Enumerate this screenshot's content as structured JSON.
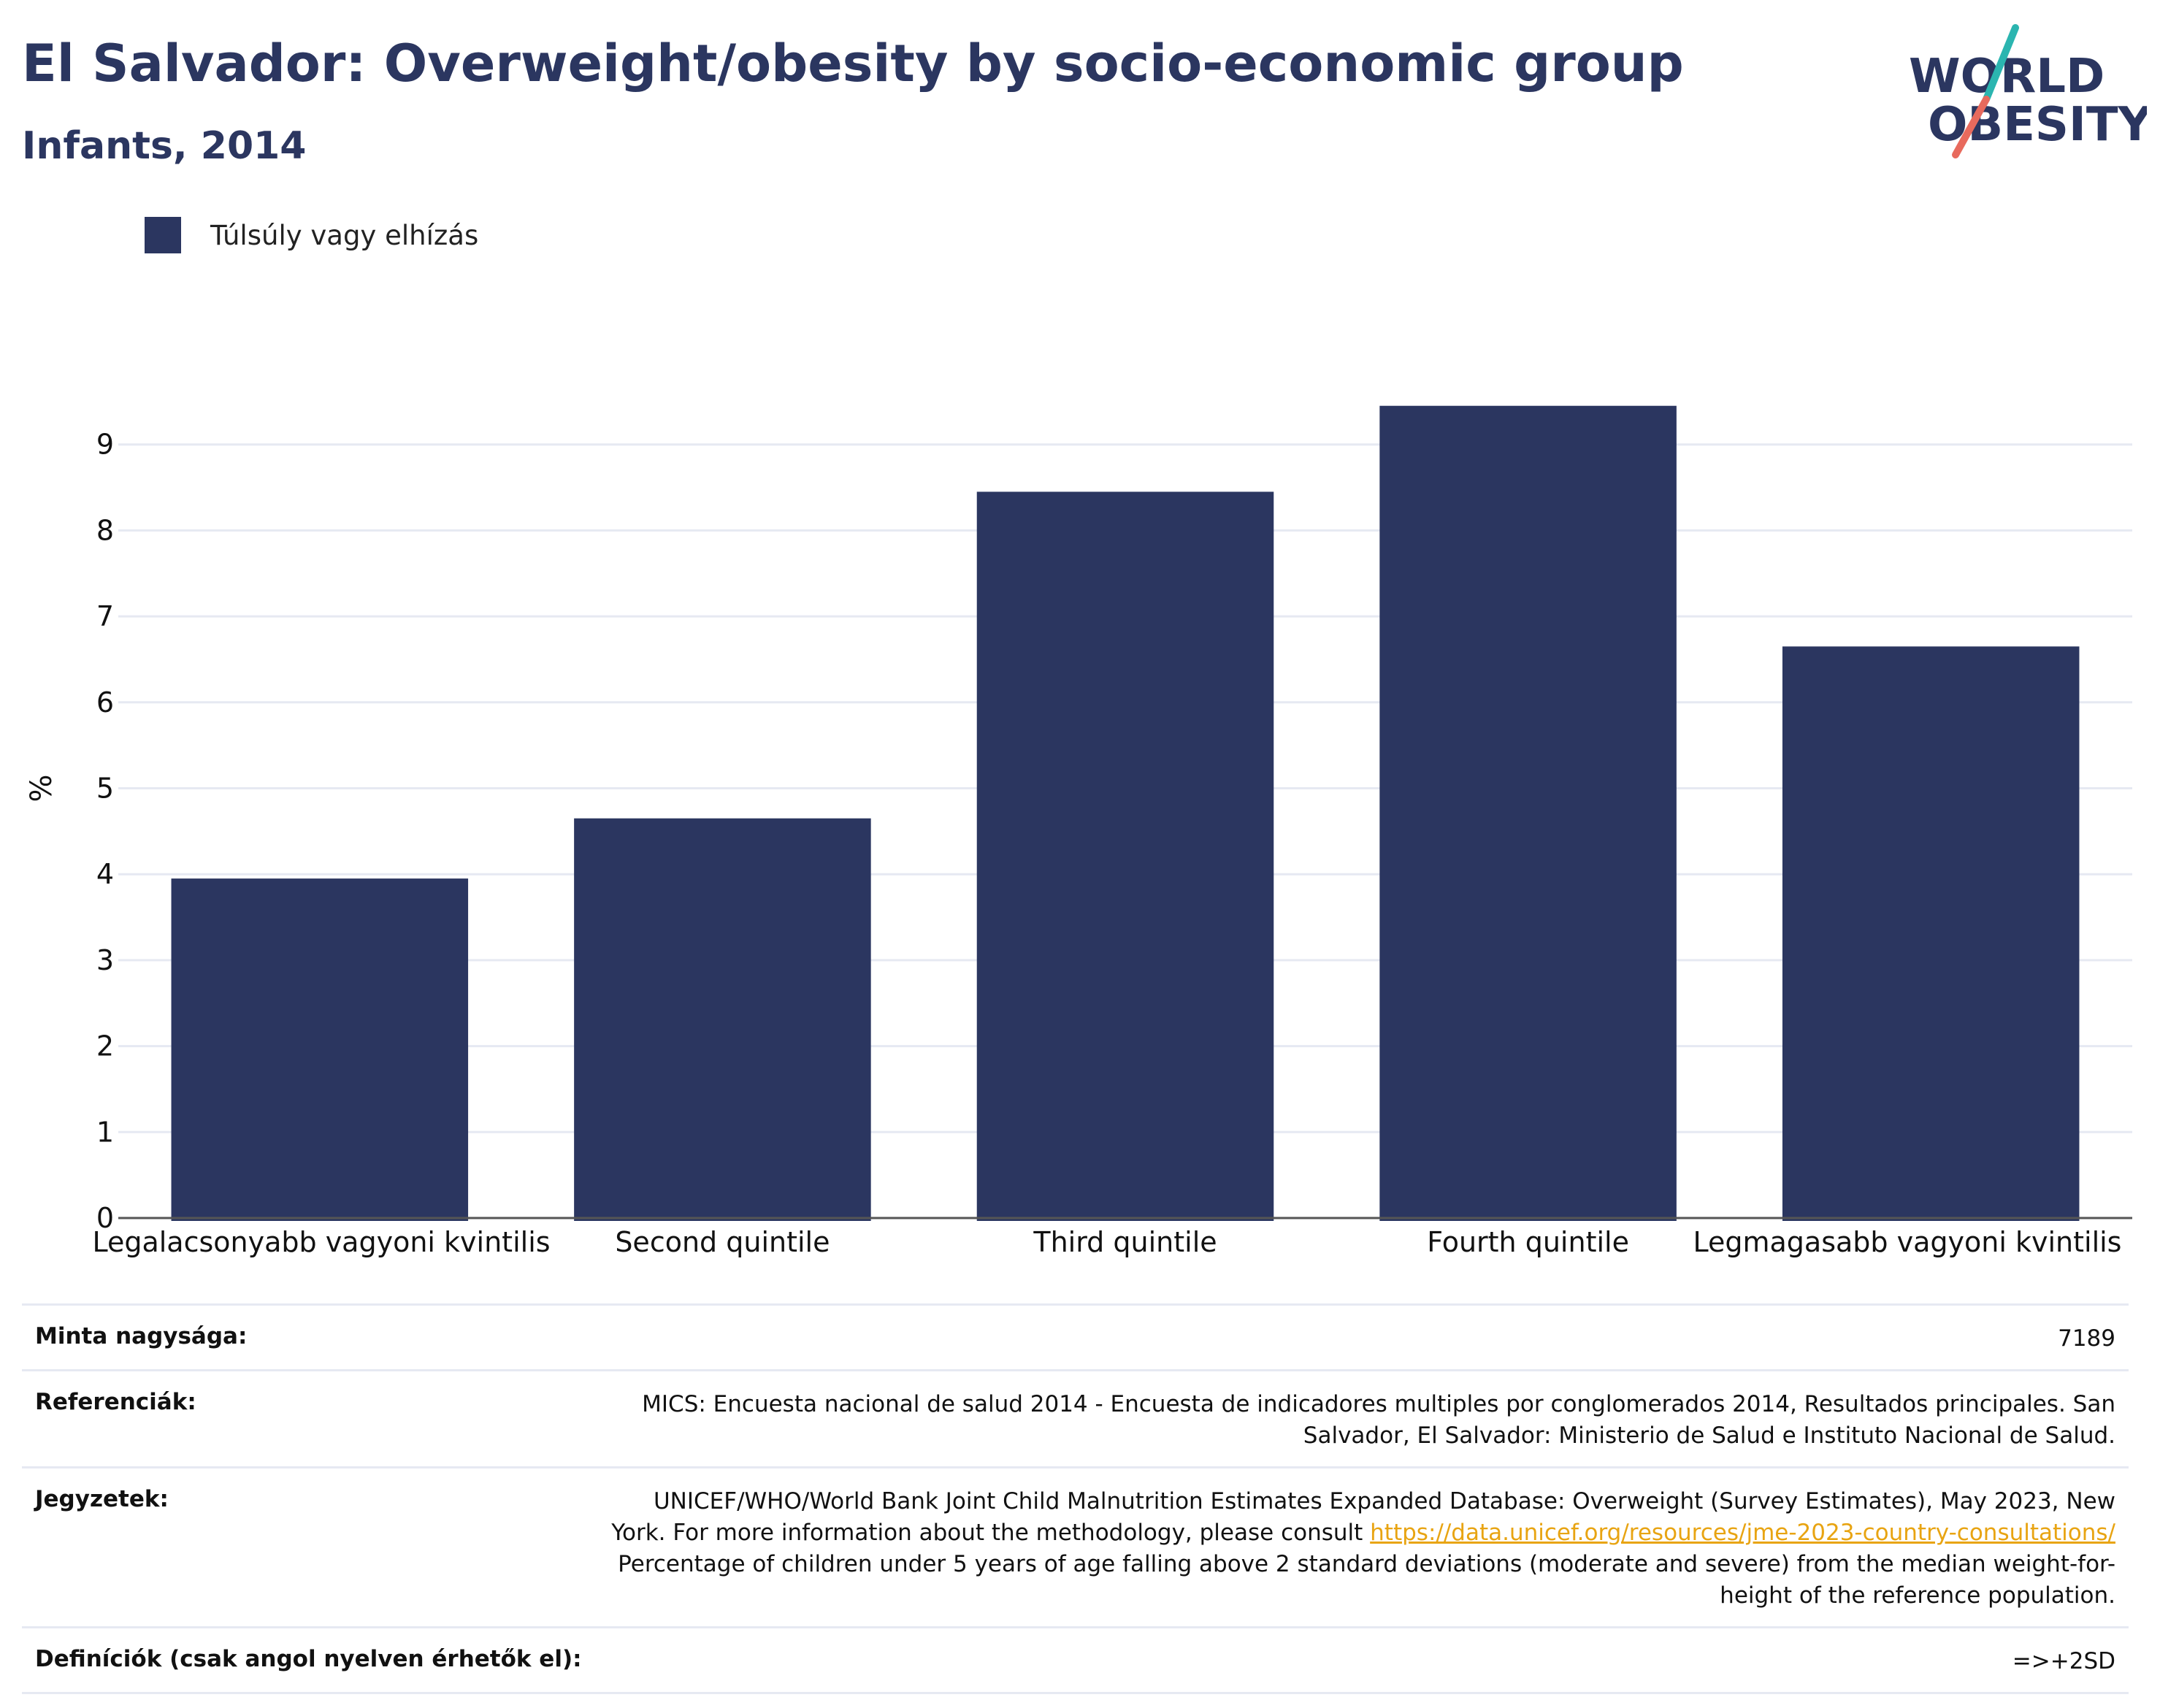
{
  "header": {
    "title": "El Salvador: Overweight/obesity by socio-economic group",
    "subtitle": "Infants, 2014"
  },
  "logo": {
    "line1": "WORLD",
    "line2": "OBESITY",
    "icon": "world-obesity-logo"
  },
  "colors": {
    "bar": "#2b3660",
    "title": "#2b3660",
    "logo_teal": "#2bb5b0",
    "logo_red": "#e86a5d",
    "link": "#e8a412"
  },
  "chart_data": {
    "type": "bar",
    "categories": [
      "Legalacsonyabb vagyoni kvintilis",
      "Second quintile",
      "Third quintile",
      "Fourth quintile",
      "Legmagasabb vagyoni kvintilis"
    ],
    "series": [
      {
        "name": "Túlsúly vagy elhízás",
        "values": [
          3.95,
          4.65,
          8.45,
          9.45,
          6.65
        ]
      }
    ],
    "ylabel": "%",
    "ylim": [
      0,
      10
    ],
    "yticks": [
      0,
      1,
      2,
      3,
      4,
      5,
      6,
      7,
      8,
      9
    ],
    "grid": true,
    "legend": "top-left"
  },
  "info": [
    {
      "key": "Minta nagysága:",
      "value": "7189"
    },
    {
      "key": "Referenciák:",
      "value": "MICS: Encuesta nacional de salud 2014 - Encuesta de indicadores multiples por conglomerados 2014, Resultados principales. San Salvador, El Salvador: Ministerio de Salud e Instituto Nacional de Salud."
    },
    {
      "key": "Jegyzetek:",
      "value_before": "UNICEF/WHO/World Bank Joint Child Malnutrition Estimates Expanded Database: Overweight (Survey Estimates), May 2023, New York. For more information about the methodology, please consult ",
      "link": "https://data.unicef.org/resources/jme-2023-country-consultations/",
      "value_after": " Percentage of children under 5 years of age falling above 2 standard deviations (moderate and severe) from the median weight-for-height of the reference population."
    },
    {
      "key": "Definíciók (csak angol nyelven érhetők el):",
      "value": "=>+2SD"
    }
  ]
}
